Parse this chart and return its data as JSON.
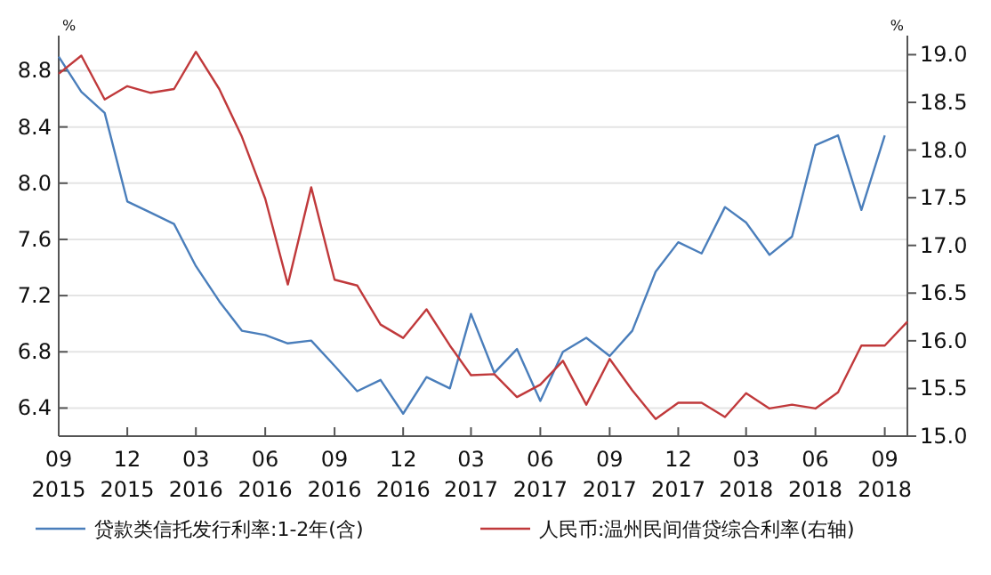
{
  "chart_data": {
    "type": "line",
    "xlabel": null,
    "ylabel": "%",
    "y2label": "%",
    "xlim": [
      "2015-09",
      "2018-10"
    ],
    "xticks": [
      {
        "value": "2015-09",
        "label": "09\n2015"
      },
      {
        "value": "2015-12",
        "label": "12\n2015"
      },
      {
        "value": "2016-03",
        "label": "03\n2016"
      },
      {
        "value": "2016-06",
        "label": "06\n2016"
      },
      {
        "value": "2016-09",
        "label": "09\n2016"
      },
      {
        "value": "2016-12",
        "label": "12\n2016"
      },
      {
        "value": "2017-03",
        "label": "03\n2017"
      },
      {
        "value": "2017-06",
        "label": "06\n2017"
      },
      {
        "value": "2017-09",
        "label": "09\n2017"
      },
      {
        "value": "2017-12",
        "label": "12\n2017"
      },
      {
        "value": "2018-03",
        "label": "03\n2018"
      },
      {
        "value": "2018-06",
        "label": "06\n2018"
      },
      {
        "value": "2018-09",
        "label": "09\n2018"
      }
    ],
    "ylim": [
      6.2,
      9.05
    ],
    "yticks": [
      {
        "value": 6.4,
        "label": "6.4"
      },
      {
        "value": 6.8,
        "label": "6.8"
      },
      {
        "value": 7.2,
        "label": "7.2"
      },
      {
        "value": 7.6,
        "label": "7.6"
      },
      {
        "value": 8.0,
        "label": "8.0"
      },
      {
        "value": 8.4,
        "label": "8.4"
      },
      {
        "value": 8.8,
        "label": "8.8"
      }
    ],
    "y2lim": [
      15.0,
      19.2
    ],
    "y2ticks": [
      {
        "value": 15,
        "label": "15.0"
      },
      {
        "value": 15.5,
        "label": "15.5"
      },
      {
        "value": 16,
        "label": "16.0"
      },
      {
        "value": 16.5,
        "label": "16.5"
      },
      {
        "value": 17,
        "label": "17.0"
      },
      {
        "value": 17.5,
        "label": "17.5"
      },
      {
        "value": 18,
        "label": "18.0"
      },
      {
        "value": 18.5,
        "label": "18.5"
      },
      {
        "value": 19,
        "label": "19.0"
      }
    ],
    "grid": "y",
    "legend": "bottom",
    "marker": "none",
    "line_style": "solid",
    "x": [
      "2015-09",
      "2015-10",
      "2015-11",
      "2015-12",
      "2016-01",
      "2016-02",
      "2016-03",
      "2016-04",
      "2016-05",
      "2016-06",
      "2016-07",
      "2016-08",
      "2016-09",
      "2016-10",
      "2016-11",
      "2016-12",
      "2017-01",
      "2017-02",
      "2017-03",
      "2017-04",
      "2017-05",
      "2017-06",
      "2017-07",
      "2017-08",
      "2017-09",
      "2017-10",
      "2017-11",
      "2017-12",
      "2018-01",
      "2018-02",
      "2018-03",
      "2018-04",
      "2018-05",
      "2018-06",
      "2018-07",
      "2018-08",
      "2018-09",
      "2018-10"
    ],
    "series": [
      {
        "name": "贷款类信托发行利率:1-2年(含)",
        "color": "#4a7ebb",
        "values": [
          8.9,
          8.65,
          8.5,
          7.87,
          7.79,
          7.71,
          7.41,
          7.16,
          6.95,
          6.92,
          6.86,
          6.88,
          6.7,
          6.52,
          6.6,
          6.36,
          6.62,
          6.54,
          7.07,
          6.65,
          6.82,
          6.45,
          6.8,
          6.9,
          6.77,
          6.95,
          7.37,
          7.58,
          7.5,
          7.83,
          7.72,
          7.49,
          7.62,
          8.27,
          8.34,
          7.81,
          8.34,
          null
        ]
      },
      {
        "name": "人民币:温州民间借贷综合利率(右轴)",
        "color": "#c0393b",
        "axis": "y2",
        "values": [
          18.8,
          18.99,
          18.53,
          18.67,
          18.6,
          18.64,
          19.03,
          18.64,
          18.14,
          17.49,
          16.59,
          17.61,
          16.64,
          16.58,
          16.17,
          16.03,
          16.33,
          15.95,
          15.64,
          15.65,
          15.41,
          15.54,
          15.79,
          15.33,
          15.81,
          15.48,
          15.18,
          15.35,
          15.35,
          15.2,
          15.45,
          15.29,
          15.33,
          15.29,
          15.46,
          15.95,
          15.95,
          16.2
        ]
      }
    ]
  }
}
